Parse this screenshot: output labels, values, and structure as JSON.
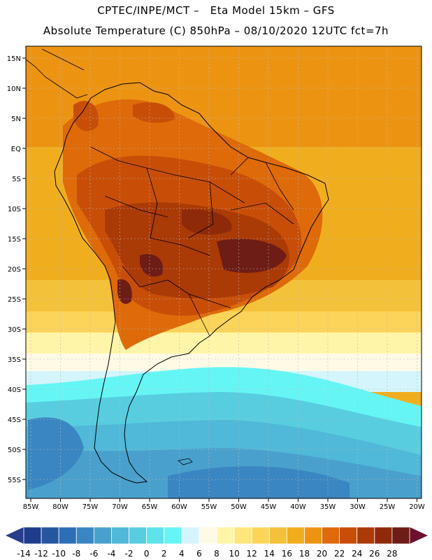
{
  "header": {
    "line1": "CPTEC/INPE/MCT –   Eta Model 15km – GFS",
    "line2": "Absolute Temperature (C) 850hPa – 08/10/2020 12UTC fct=7h"
  },
  "map": {
    "lat_labels": [
      "15N",
      "10N",
      "5N",
      "EQ",
      "5S",
      "10S",
      "15S",
      "20S",
      "25S",
      "30S",
      "35S",
      "40S",
      "45S",
      "50S",
      "55S"
    ],
    "lon_labels": [
      "85W",
      "80W",
      "75W",
      "70W",
      "65W",
      "60W",
      "55W",
      "50W",
      "45W",
      "40W",
      "35W",
      "30W",
      "25W",
      "20W"
    ]
  },
  "colorbar": {
    "labels": [
      "-14",
      "-12",
      "-10",
      "-8",
      "-6",
      "-4",
      "-2",
      "0",
      "2",
      "4",
      "6",
      "8",
      "10",
      "12",
      "14",
      "16",
      "18",
      "20",
      "22",
      "24",
      "26",
      "28"
    ],
    "colors": [
      "#1e3c8c",
      "#2656a0",
      "#2e6eb4",
      "#3a86c2",
      "#4aa0cc",
      "#50b8d8",
      "#58cde0",
      "#5fe3ea",
      "#66f5f5",
      "#d4f5fb",
      "#fffae6",
      "#fff5a8",
      "#ffe57a",
      "#fcd45a",
      "#f4c23a",
      "#f0ae1e",
      "#ec9412",
      "#de6a0a",
      "#c84e08",
      "#aa3a06",
      "#8e2a0a",
      "#6e1c16"
    ],
    "under_color": "#2a3c8c",
    "over_color": "#6e1030"
  }
}
